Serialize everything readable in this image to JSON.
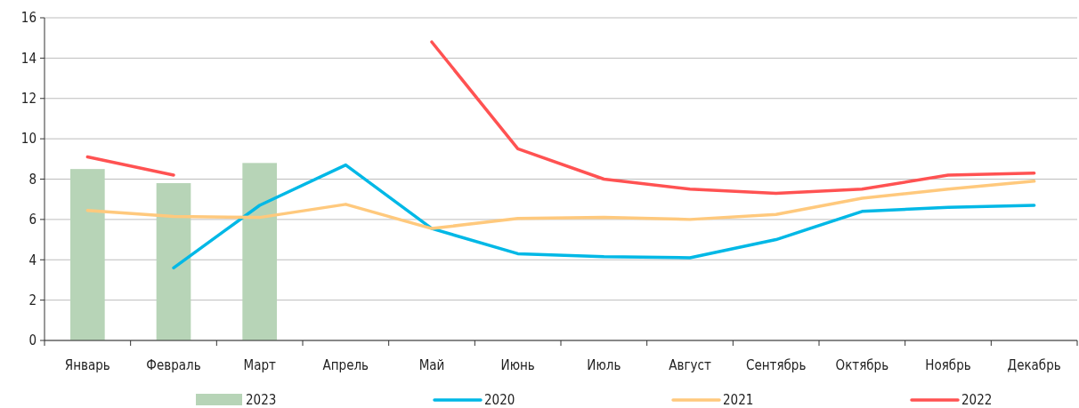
{
  "chart_data": {
    "type": "line",
    "categories": [
      "Январь",
      "Февраль",
      "Март",
      "Апрель",
      "Май",
      "Июнь",
      "Июль",
      "Август",
      "Сентябрь",
      "Октябрь",
      "Ноябрь",
      "Декабрь"
    ],
    "series": [
      {
        "name": "2023",
        "type": "bar",
        "color": "#b7d4b7",
        "values": [
          8.5,
          7.8,
          8.8,
          null,
          null,
          null,
          null,
          null,
          null,
          null,
          null,
          null
        ]
      },
      {
        "name": "2020",
        "color": "#00b8e6",
        "values": [
          null,
          3.6,
          6.7,
          8.7,
          5.55,
          4.3,
          4.15,
          4.1,
          5.0,
          6.4,
          6.6,
          6.7
        ]
      },
      {
        "name": "2021",
        "color": "#ffc97d",
        "values": [
          6.45,
          6.15,
          6.1,
          6.75,
          5.55,
          6.05,
          6.1,
          6.0,
          6.25,
          7.05,
          7.5,
          7.9
        ]
      },
      {
        "name": "2022",
        "color": "#ff5252",
        "values": [
          9.1,
          8.2,
          null,
          null,
          14.8,
          9.5,
          8.0,
          7.5,
          7.3,
          7.5,
          8.2,
          8.3
        ]
      }
    ],
    "ylim": [
      0,
      16
    ],
    "yticks": [
      0,
      2,
      4,
      6,
      8,
      10,
      12,
      14,
      16
    ],
    "grid": "y",
    "legend": "bottom"
  }
}
